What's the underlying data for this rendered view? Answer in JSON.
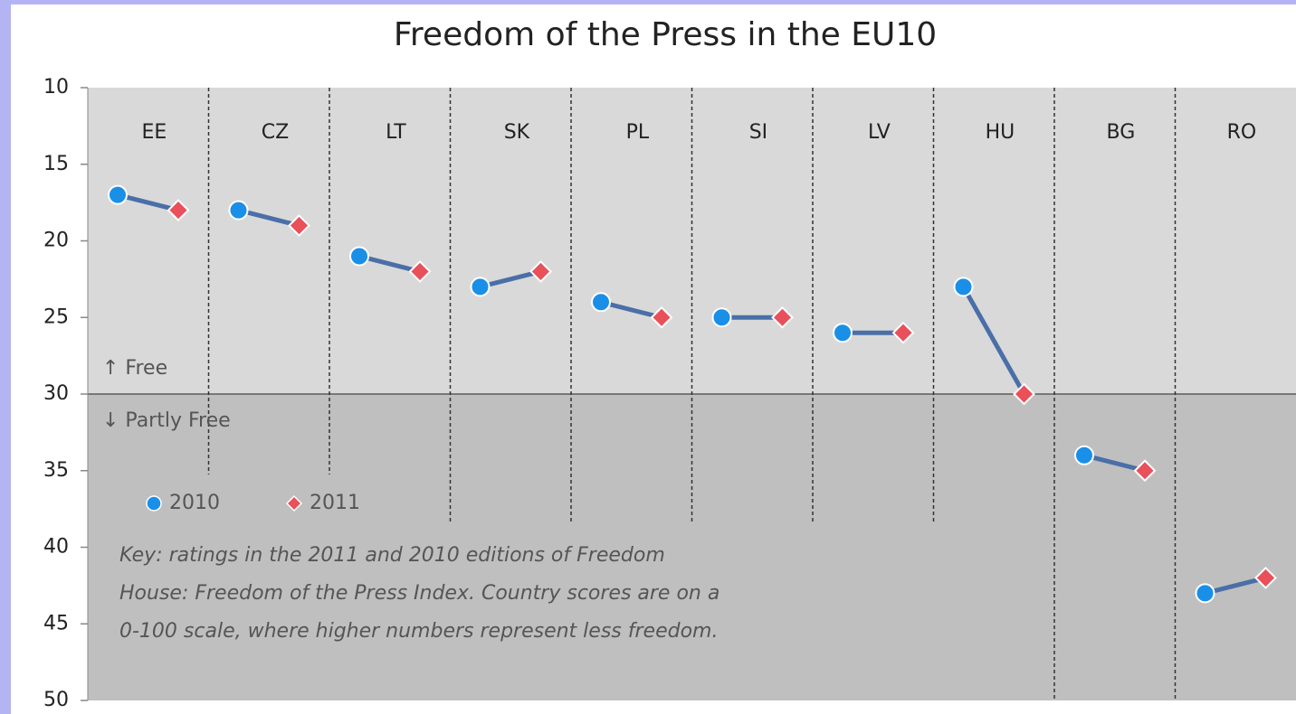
{
  "chart_data": {
    "type": "dumbbell",
    "title": "Freedom of the Press in the EU10",
    "categories": [
      "EE",
      "CZ",
      "LT",
      "SK",
      "PL",
      "SI",
      "LV",
      "HU",
      "BG",
      "RO"
    ],
    "series": [
      {
        "name": "2010",
        "color": "#1a8fe8",
        "marker": "circle",
        "values": [
          17,
          18,
          21,
          23,
          24,
          25,
          26,
          23,
          34,
          43
        ]
      },
      {
        "name": "2011",
        "color": "#e9505a",
        "marker": "diamond",
        "values": [
          18,
          19,
          22,
          22,
          25,
          25,
          26,
          30,
          35,
          42
        ]
      }
    ],
    "connector_color": "#4a6fa8",
    "ylim": [
      10,
      50
    ],
    "yticks": [
      10,
      15,
      20,
      25,
      30,
      35,
      40,
      45,
      50
    ],
    "y_inverted": true,
    "threshold": 30,
    "region_colors": [
      "#d9d9d9",
      "#bfbfbf"
    ],
    "annotations": {
      "above": "↑ Free",
      "below": "↓ Partly Free",
      "key": [
        "Key: ratings in the 2011 and 2010 editions of Freedom",
        "House: Freedom of the Press Index. Country scores are on a",
        "0-100 scale, where higher numbers represent less freedom."
      ]
    }
  }
}
